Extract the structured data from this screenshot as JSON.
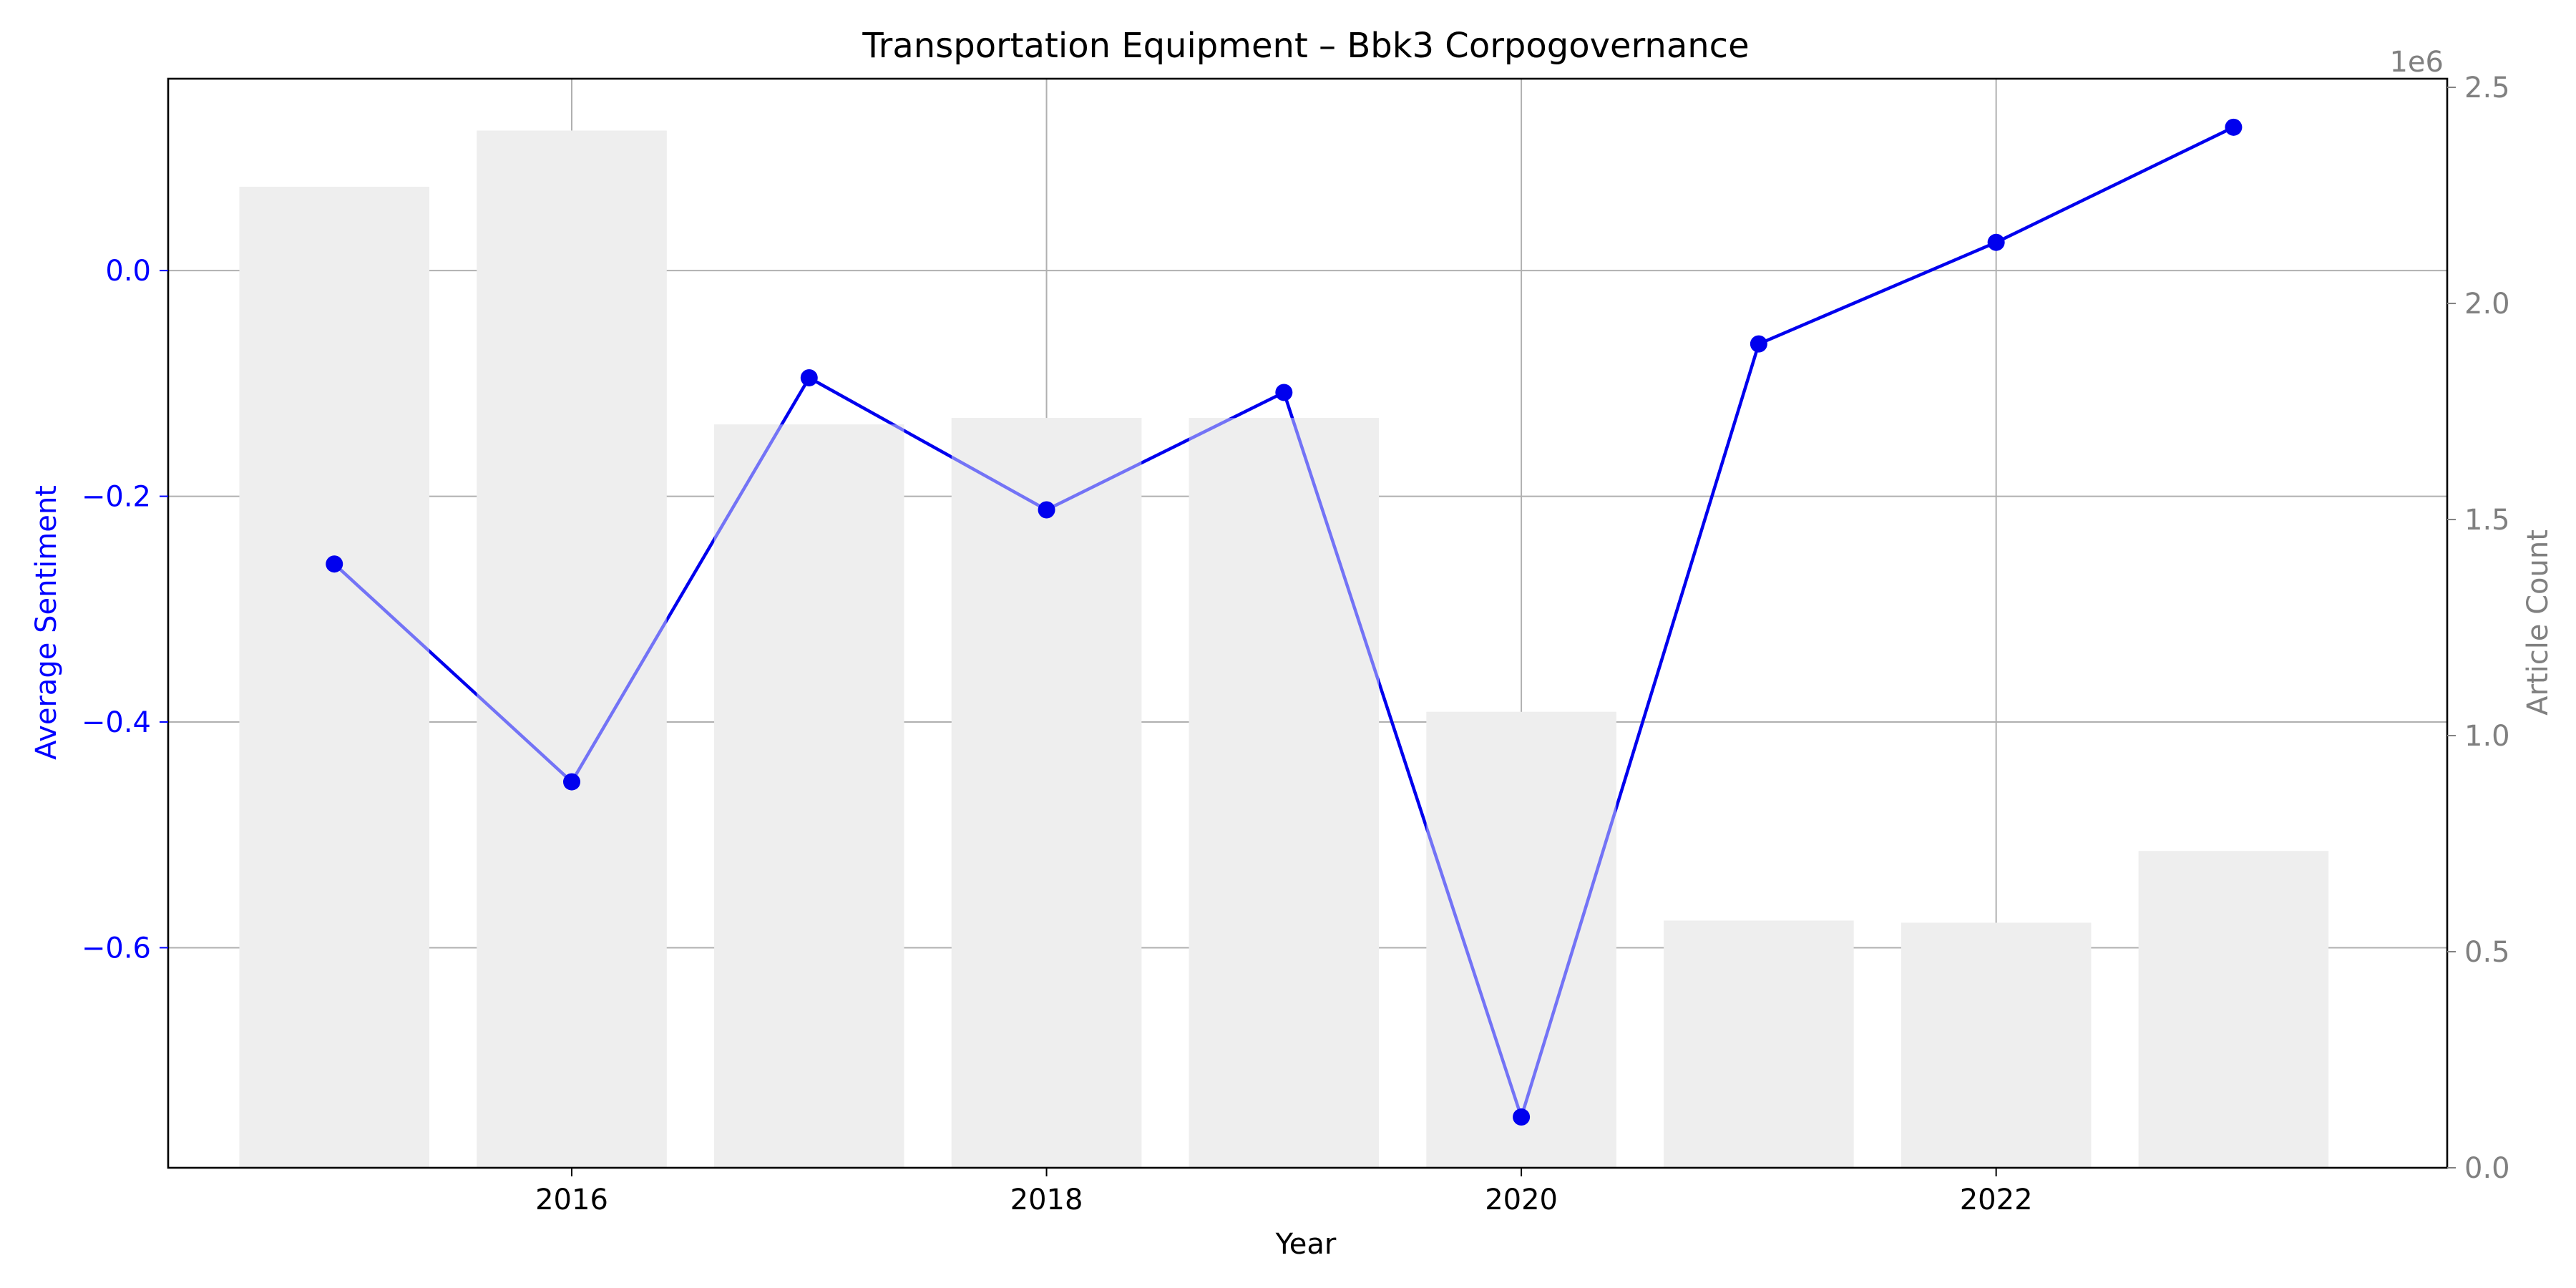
{
  "chart_data": {
    "type": "bar+line",
    "title": "Transportation Equipment – Bbk3 Corpogovernance",
    "xlabel": "Year",
    "ylabel_left": "Average Sentiment",
    "ylabel_right": "Article Count",
    "right_axis_offset_label": "1e6",
    "x": [
      2015,
      2016,
      2017,
      2018,
      2019,
      2020,
      2021,
      2022,
      2023
    ],
    "x_ticks": [
      2016,
      2018,
      2020,
      2022
    ],
    "x_tick_labels": [
      "2016",
      "2018",
      "2020",
      "2022"
    ],
    "xlim": [
      2014.3,
      2023.9
    ],
    "series": [
      {
        "axis": "left",
        "kind": "line",
        "values": [
          -0.26,
          -0.453,
          -0.095,
          -0.212,
          -0.108,
          -0.75,
          -0.065,
          0.025,
          0.127
        ]
      },
      {
        "axis": "right",
        "kind": "bar",
        "values": [
          2270000,
          2400000,
          1720000,
          1735000,
          1735000,
          1055000,
          572000,
          567000,
          733000
        ]
      }
    ],
    "ylim_left": [
      -0.795,
      0.17
    ],
    "y_ticks_left": [
      0.0,
      -0.2,
      -0.4,
      -0.6
    ],
    "y_tick_labels_left": [
      "0.0",
      "−0.2",
      "−0.4",
      "−0.6"
    ],
    "ylim_right": [
      0,
      2520000
    ],
    "y_ticks_right": [
      0,
      500000,
      1000000,
      1500000,
      2000000,
      2500000
    ],
    "y_tick_labels_right": [
      "0.0",
      "0.5",
      "1.0",
      "1.5",
      "2.0",
      "2.5"
    ],
    "grid": true,
    "colors": {
      "line": "#0000ee",
      "bars": "#e0e0e0",
      "grid": "#b0b0b0",
      "left_axis": "#0000ff",
      "right_axis": "#808080",
      "text": "#000000"
    }
  }
}
